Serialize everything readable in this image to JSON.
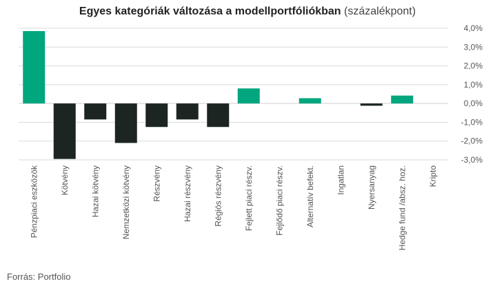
{
  "chart_data": {
    "type": "bar",
    "title": "Egyes kategóriák változása a modellportfóliókban",
    "subtitle": "(százalékpont)",
    "categories": [
      "Pénzpiaci eszközök",
      "Kötvény",
      "Hazai kötvény",
      "Nemzetközi kötvény",
      "Részvény",
      "Hazai részvény",
      "Régiós részvény",
      "Fejlett piaci részv.",
      "Fejlődő piaci részv.",
      "Alternatív befekt.",
      "Ingatlan",
      "Nyersanyag",
      "Hedge fund /absz. hoz.",
      "Kripto"
    ],
    "values": [
      3.85,
      -2.95,
      -0.85,
      -2.1,
      -1.25,
      -0.85,
      -1.25,
      0.8,
      0.0,
      0.28,
      0.0,
      -0.12,
      0.42,
      0.0
    ],
    "colors": [
      "#00a67e",
      "#1c2521",
      "#1c2521",
      "#1c2521",
      "#1c2521",
      "#1c2521",
      "#1c2521",
      "#00a67e",
      "#00a67e",
      "#00a67e",
      "#00a67e",
      "#1c2521",
      "#00a67e",
      "#00a67e"
    ],
    "ylim": [
      -3.0,
      4.0
    ],
    "yticks": [
      "4,0%",
      "3,0%",
      "2,0%",
      "1,0%",
      "0,0%",
      "-1,0%",
      "-2,0%",
      "-3,0%"
    ],
    "ytick_values": [
      4,
      3,
      2,
      1,
      0,
      -1,
      -2,
      -3
    ],
    "grid": true,
    "y_axis_position": "right",
    "xlabel": "",
    "ylabel": ""
  },
  "source": "Forrás: Portfolio",
  "colors": {
    "positive": "#00a67e",
    "negative": "#1c2521",
    "grid": "#d9d9d9"
  }
}
